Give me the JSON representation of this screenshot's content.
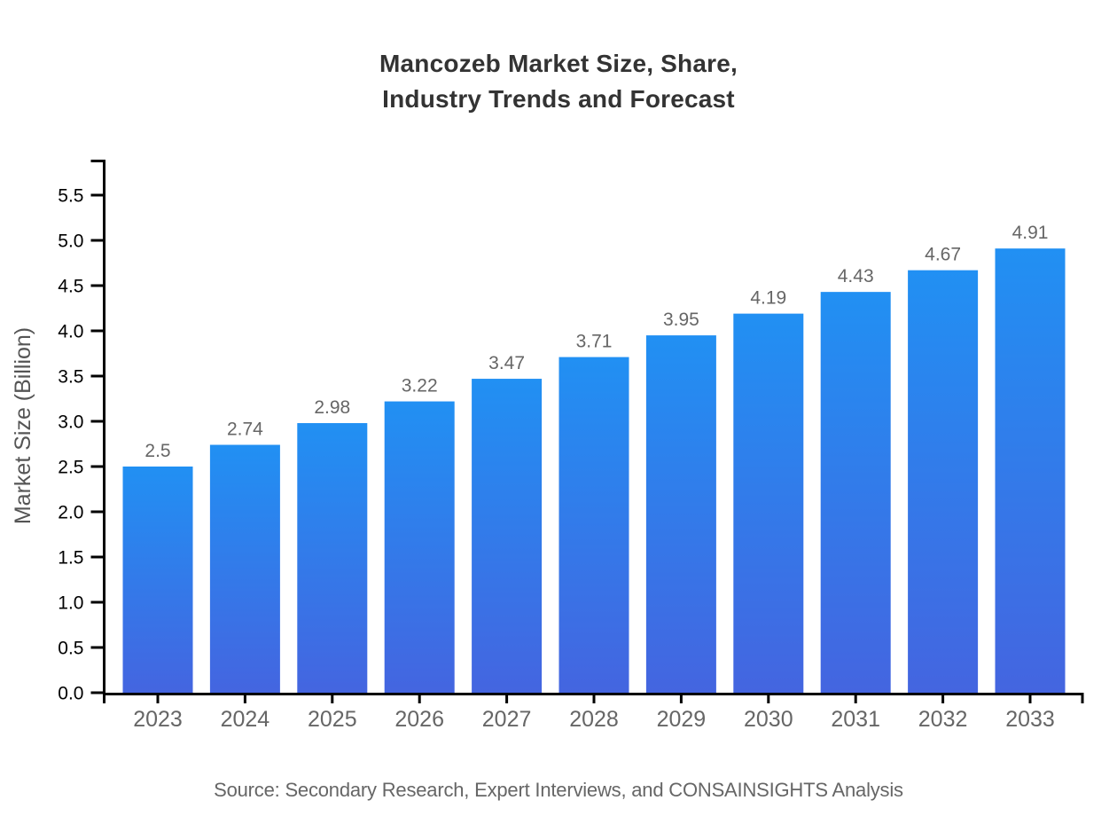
{
  "page": {
    "title_line1": "Mancozeb Market Size, Share,",
    "title_line2": "Industry Trends and Forecast",
    "source_note": "Source: Secondary Research, Expert Interviews, and CONSAINSIGHTS Analysis"
  },
  "chart_data": {
    "type": "bar",
    "title": "Mancozeb Market Size, Share, Industry Trends and Forecast",
    "categories": [
      "2023",
      "2024",
      "2025",
      "2026",
      "2027",
      "2028",
      "2029",
      "2030",
      "2031",
      "2032",
      "2033"
    ],
    "values": [
      2.5,
      2.74,
      2.98,
      3.22,
      3.47,
      3.71,
      3.95,
      4.19,
      4.43,
      4.67,
      4.91
    ],
    "value_labels": [
      "2.5",
      "2.74",
      "2.98",
      "3.22",
      "3.47",
      "3.71",
      "3.95",
      "4.19",
      "4.43",
      "4.67",
      "4.91"
    ],
    "xlabel": "",
    "ylabel": "Market Size (Billion)",
    "ylim": [
      0,
      5.9
    ],
    "yticks": [
      "0.0",
      "0.5",
      "1.0",
      "1.5",
      "2.0",
      "2.5",
      "3.0",
      "3.5",
      "4.0",
      "4.5",
      "5.0",
      "5.5"
    ],
    "grid": false,
    "legend": false,
    "colors": {
      "bar_gradient_top": "#2190F3",
      "bar_gradient_bottom": "#4465E0",
      "axis": "#000000",
      "y_tick_label": "#000000",
      "x_tick_label": "#666666",
      "value_label": "#666666",
      "title": "#333333",
      "axis_label": "#555555",
      "source": "#666666"
    }
  }
}
